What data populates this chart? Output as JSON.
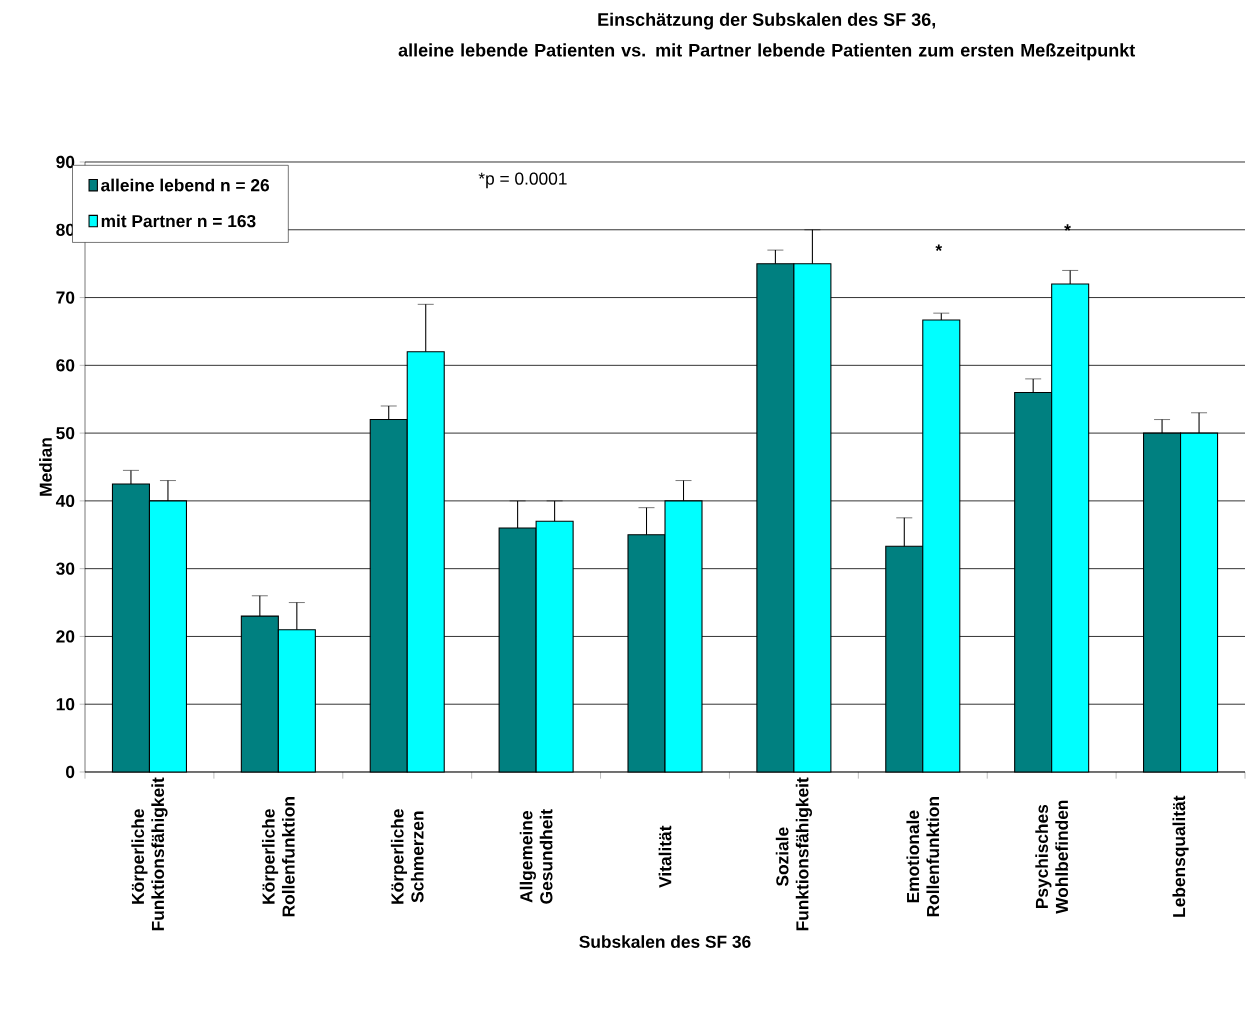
{
  "chart_data": {
    "type": "bar",
    "title": "Einschätzung der Subskalen des SF 36,",
    "subtitle": "alleine lebende Patienten vs. mit Partner lebende Patienten zum ersten Meßzeitpunkt",
    "xlabel": "Subskalen des SF 36",
    "ylabel": "Median",
    "categories": [
      "Körperliche Funktionsfähigkeit",
      "Körperliche Rollenfunktion",
      "Körperliche Schmerzen",
      "Allgemeine Gesundheit",
      "Vitalität",
      "Soziale Funktionsfähigkeit",
      "Emotionale Rollenfunktion",
      "Psychisches Wohlbefinden",
      "Lebensqualität"
    ],
    "series": [
      {
        "name": "alleine lebend n = 26",
        "color": "#008080",
        "values": [
          42.5,
          23,
          52,
          36,
          35,
          75,
          33.3,
          56,
          50
        ],
        "errors": [
          [
            42.5,
            44.5
          ],
          [
            23,
            26
          ],
          [
            52,
            54
          ],
          [
            36,
            40
          ],
          [
            35,
            39
          ],
          [
            75,
            77
          ],
          [
            33.3,
            37.5
          ],
          [
            56,
            58
          ],
          [
            50,
            52
          ]
        ]
      },
      {
        "name": "mit Partner n = 163",
        "color": "#00ffff",
        "values": [
          40,
          21,
          62,
          37,
          40,
          75,
          66.7,
          72,
          50
        ],
        "errors": [
          [
            40,
            43
          ],
          [
            21,
            25
          ],
          [
            62,
            69
          ],
          [
            37,
            40
          ],
          [
            40,
            43
          ],
          [
            75,
            80
          ],
          [
            66.7,
            67.7
          ],
          [
            72,
            74
          ],
          [
            50,
            53
          ]
        ]
      }
    ],
    "ylim": [
      0,
      90
    ],
    "yticks": [
      0,
      10,
      20,
      30,
      40,
      50,
      60,
      70,
      80,
      90
    ],
    "grid": "y",
    "legend": "top left",
    "annotations": [
      "*p = 0.0001",
      "*",
      "*"
    ]
  }
}
